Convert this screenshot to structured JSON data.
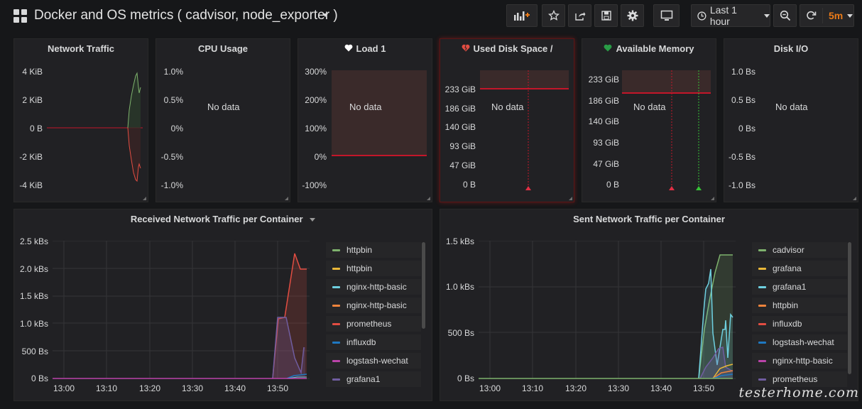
{
  "dashboard": {
    "title": "Docker and OS metrics ( cadvisor, node_exporter )"
  },
  "toolbar": {
    "time_range": "Last 1 hour",
    "refresh_interval": "5m",
    "accent_color": "#eb7b18"
  },
  "panels": {
    "network_traffic": {
      "title": "Network Traffic",
      "y_ticks": [
        "4 KiB",
        "2 KiB",
        "0 B",
        "-2 KiB",
        "-4 KiB"
      ]
    },
    "cpu_usage": {
      "title": "CPU Usage",
      "no_data": "No data",
      "y_ticks": [
        "1.0%",
        "0.5%",
        "0%",
        "-0.5%",
        "-1.0%"
      ]
    },
    "load1": {
      "title": "Load 1",
      "state_color": "#ffffff",
      "no_data": "No data",
      "y_ticks": [
        "300%",
        "200%",
        "100%",
        "0%",
        "-100%"
      ]
    },
    "used_disk": {
      "title": "Used Disk Space /",
      "state_color": "#e24d42",
      "no_data": "No data",
      "y_ticks": [
        "233 GiB",
        "186 GiB",
        "140 GiB",
        "93 GiB",
        "47 GiB",
        "0 B"
      ]
    },
    "available_memory": {
      "title": "Available Memory",
      "state_color": "#299c46",
      "no_data": "No data",
      "y_ticks": [
        "233 GiB",
        "186 GiB",
        "140 GiB",
        "93 GiB",
        "47 GiB",
        "0 B"
      ]
    },
    "disk_io": {
      "title": "Disk I/O",
      "no_data": "No data",
      "y_ticks": [
        "1.0 Bs",
        "0.5 Bs",
        "0 Bs",
        "-0.5 Bs",
        "-1.0 Bs"
      ]
    },
    "received": {
      "title": "Received Network Traffic per Container",
      "y_ticks": [
        "2.5 kBs",
        "2.0 kBs",
        "1.5 kBs",
        "1.0 kBs",
        "500 Bs",
        "0 Bs"
      ],
      "x_ticks": [
        "13:00",
        "13:10",
        "13:20",
        "13:30",
        "13:40",
        "13:50"
      ],
      "legend": [
        {
          "name": "httpbin",
          "color": "#7eb26d"
        },
        {
          "name": "httpbin",
          "color": "#eab839"
        },
        {
          "name": "nginx-http-basic",
          "color": "#6ed0e0"
        },
        {
          "name": "nginx-http-basic",
          "color": "#ef843c"
        },
        {
          "name": "prometheus",
          "color": "#e24d42"
        },
        {
          "name": "influxdb",
          "color": "#1f78c1"
        },
        {
          "name": "logstash-wechat",
          "color": "#ba43a9"
        },
        {
          "name": "grafana1",
          "color": "#705da0"
        }
      ]
    },
    "sent": {
      "title": "Sent Network Traffic per Container",
      "y_ticks": [
        "1.5 kBs",
        "1.0 kBs",
        "500 Bs",
        "0 Bs"
      ],
      "x_ticks": [
        "13:00",
        "13:10",
        "13:20",
        "13:30",
        "13:40",
        "13:50"
      ],
      "legend": [
        {
          "name": "cadvisor",
          "color": "#7eb26d"
        },
        {
          "name": "grafana",
          "color": "#eab839"
        },
        {
          "name": "grafana1",
          "color": "#6ed0e0"
        },
        {
          "name": "httpbin",
          "color": "#ef843c"
        },
        {
          "name": "influxdb",
          "color": "#e24d42"
        },
        {
          "name": "logstash-wechat",
          "color": "#1f78c1"
        },
        {
          "name": "nginx-http-basic",
          "color": "#ba43a9"
        },
        {
          "name": "prometheus",
          "color": "#705da0"
        }
      ]
    }
  },
  "watermark": "testerhome.com"
}
